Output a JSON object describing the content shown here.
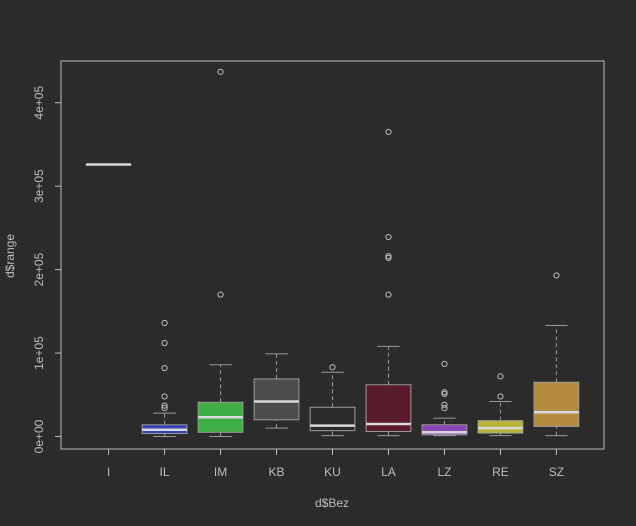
{
  "chart_data": {
    "type": "boxplot",
    "xlabel": "d$Bez",
    "ylabel": "d$range",
    "ylim": [
      -15000,
      450000
    ],
    "yticks": [
      {
        "value": 0,
        "label": "0e+00"
      },
      {
        "value": 100000,
        "label": "1e+05"
      },
      {
        "value": 200000,
        "label": "2e+05"
      },
      {
        "value": 300000,
        "label": "3e+05"
      },
      {
        "value": 400000,
        "label": "4e+05"
      }
    ],
    "categories": [
      "I",
      "IL",
      "IM",
      "KB",
      "KU",
      "LA",
      "LZ",
      "RE",
      "SZ"
    ],
    "boxes": [
      {
        "label": "I",
        "color": "#d9d9d9",
        "whisker_low": 326000,
        "q1": 326000,
        "median": 326000,
        "q3": 326000,
        "whisker_high": 326000,
        "outliers": []
      },
      {
        "label": "IL",
        "color": "#3a3fb5",
        "whisker_low": 0,
        "q1": 3500,
        "median": 8000,
        "q3": 14000,
        "whisker_high": 28000,
        "outliers": [
          34000,
          37000,
          48000,
          82000,
          112000,
          136000
        ]
      },
      {
        "label": "IM",
        "color": "#3fae46",
        "whisker_low": 0,
        "q1": 5000,
        "median": 23000,
        "q3": 41000,
        "whisker_high": 86000,
        "outliers": [
          170000,
          437000
        ]
      },
      {
        "label": "KB",
        "color": "#4d4d4d",
        "whisker_low": 10000,
        "q1": 20000,
        "median": 42000,
        "q3": 69000,
        "whisker_high": 99000,
        "outliers": []
      },
      {
        "label": "KU",
        "color": "#2b2b2b",
        "whisker_low": 1000,
        "q1": 7000,
        "median": 13000,
        "q3": 35000,
        "whisker_high": 77000,
        "outliers": [
          83000
        ]
      },
      {
        "label": "LA",
        "color": "#5b1a2b",
        "whisker_low": 1000,
        "q1": 6000,
        "median": 15000,
        "q3": 62000,
        "whisker_high": 108000,
        "outliers": [
          170000,
          214000,
          216000,
          239000,
          365000
        ]
      },
      {
        "label": "LZ",
        "color": "#8a47b5",
        "whisker_low": 1000,
        "q1": 2000,
        "median": 5000,
        "q3": 14000,
        "whisker_high": 22000,
        "outliers": [
          34000,
          38000,
          51000,
          53000,
          87000
        ]
      },
      {
        "label": "RE",
        "color": "#b8b63a",
        "whisker_low": 1000,
        "q1": 4000,
        "median": 10000,
        "q3": 19000,
        "whisker_high": 42000,
        "outliers": [
          48000,
          72000
        ]
      },
      {
        "label": "SZ",
        "color": "#b58c3f",
        "whisker_low": 1000,
        "q1": 12000,
        "median": 29000,
        "q3": 65000,
        "whisker_high": 133000,
        "outliers": [
          193000
        ]
      }
    ]
  }
}
